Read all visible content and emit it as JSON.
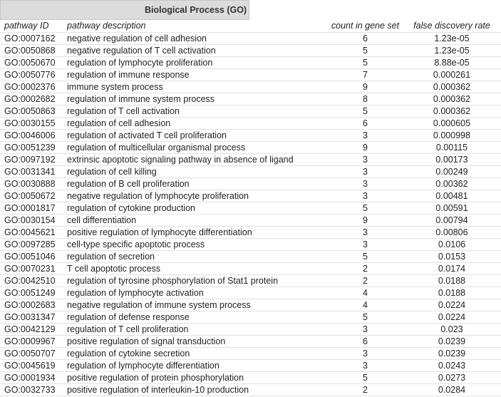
{
  "header": {
    "title": "Biological Process (GO)"
  },
  "table": {
    "columns": [
      "pathway ID",
      "pathway description",
      "count in gene set",
      "false discovery rate"
    ],
    "rows": [
      [
        "GO:0007162",
        "negative regulation of cell adhesion",
        "6",
        "1.23e-05"
      ],
      [
        "GO:0050868",
        "negative regulation of T cell activation",
        "5",
        "1.23e-05"
      ],
      [
        "GO:0050670",
        "regulation of lymphocyte proliferation",
        "5",
        "8.88e-05"
      ],
      [
        "GO:0050776",
        "regulation of immune response",
        "7",
        "0.000261"
      ],
      [
        "GO:0002376",
        "immune system process",
        "9",
        "0.000362"
      ],
      [
        "GO:0002682",
        "regulation of immune system process",
        "8",
        "0.000362"
      ],
      [
        "GO:0050863",
        "regulation of T cell activation",
        "5",
        "0.000362"
      ],
      [
        "GO:0030155",
        "regulation of cell adhesion",
        "6",
        "0.000605"
      ],
      [
        "GO:0046006",
        "regulation of activated T cell proliferation",
        "3",
        "0.000998"
      ],
      [
        "GO:0051239",
        "regulation of multicellular organismal process",
        "9",
        "0.00115"
      ],
      [
        "GO:0097192",
        "extrinsic apoptotic signaling pathway in absence of ligand",
        "3",
        "0.00173"
      ],
      [
        "GO:0031341",
        "regulation of cell killing",
        "3",
        "0.00249"
      ],
      [
        "GO:0030888",
        "regulation of B cell proliferation",
        "3",
        "0.00362"
      ],
      [
        "GO:0050672",
        "negative regulation of lymphocyte proliferation",
        "3",
        "0.00481"
      ],
      [
        "GO:0001817",
        "regulation of cytokine production",
        "5",
        "0.00591"
      ],
      [
        "GO:0030154",
        "cell differentiation",
        "9",
        "0.00794"
      ],
      [
        "GO:0045621",
        "positive regulation of lymphocyte differentiation",
        "3",
        "0.00806"
      ],
      [
        "GO:0097285",
        "cell-type specific apoptotic process",
        "3",
        "0.0106"
      ],
      [
        "GO:0051046",
        "regulation of secretion",
        "5",
        "0.0153"
      ],
      [
        "GO:0070231",
        "T cell apoptotic process",
        "2",
        "0.0174"
      ],
      [
        "GO:0042510",
        "regulation of tyrosine phosphorylation of Stat1 protein",
        "2",
        "0.0188"
      ],
      [
        "GO:0051249",
        "regulation of lymphocyte activation",
        "4",
        "0.0188"
      ],
      [
        "GO:0002683",
        "negative regulation of immune system process",
        "4",
        "0.0224"
      ],
      [
        "GO:0031347",
        "regulation of defense response",
        "5",
        "0.0224"
      ],
      [
        "GO:0042129",
        "regulation of T cell proliferation",
        "3",
        "0.023"
      ],
      [
        "GO:0009967",
        "positive regulation of signal transduction",
        "6",
        "0.0239"
      ],
      [
        "GO:0050707",
        "regulation of cytokine secretion",
        "3",
        "0.0239"
      ],
      [
        "GO:0045619",
        "regulation of lymphocyte differentiation",
        "3",
        "0.0243"
      ],
      [
        "GO:0001934",
        "positive regulation of protein phosphorylation",
        "5",
        "0.0273"
      ],
      [
        "GO:0032733",
        "positive regulation of interleukin-10 production",
        "2",
        "0.0284"
      ]
    ]
  }
}
